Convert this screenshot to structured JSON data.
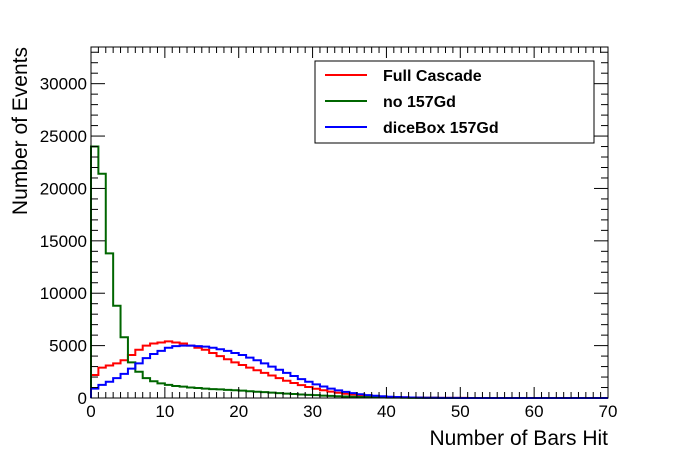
{
  "chart_data": {
    "type": "line",
    "title": "",
    "xlabel": "Number of Bars Hit",
    "ylabel": "Number of Events",
    "xlim": [
      0,
      70
    ],
    "ylim": [
      0,
      33500
    ],
    "x_ticks": [
      0,
      10,
      20,
      30,
      40,
      50,
      60,
      70
    ],
    "y_ticks": [
      0,
      5000,
      10000,
      15000,
      20000,
      25000,
      30000
    ],
    "grid": false,
    "legend_position": "top-right",
    "bin_width": 1,
    "series": [
      {
        "name": "Full Cascade",
        "color": "#ff0000",
        "values": [
          2200,
          2900,
          3100,
          3300,
          3600,
          4100,
          4600,
          5000,
          5200,
          5300,
          5400,
          5300,
          5200,
          5000,
          4800,
          4600,
          4300,
          4000,
          3700,
          3400,
          3150,
          2900,
          2650,
          2400,
          2150,
          1900,
          1650,
          1430,
          1230,
          1050,
          880,
          740,
          610,
          500,
          410,
          330,
          265,
          210,
          165,
          130,
          100,
          78,
          60,
          46,
          35,
          27,
          20,
          15,
          11,
          8,
          6,
          4,
          3,
          2,
          1,
          1,
          1,
          0,
          0,
          0,
          0,
          0,
          0,
          0,
          0,
          0,
          0,
          0,
          0,
          0
        ]
      },
      {
        "name": "no 157Gd",
        "color": "#006600",
        "values": [
          24000,
          21400,
          13800,
          8800,
          5800,
          3400,
          2500,
          1900,
          1600,
          1400,
          1250,
          1150,
          1080,
          1000,
          950,
          900,
          850,
          820,
          780,
          740,
          700,
          650,
          600,
          560,
          510,
          470,
          420,
          380,
          340,
          300,
          270,
          230,
          200,
          170,
          145,
          120,
          100,
          82,
          66,
          52,
          40,
          30,
          22,
          16,
          12,
          8,
          6,
          4,
          3,
          2,
          1,
          1,
          0,
          0,
          0,
          0,
          0,
          0,
          0,
          0,
          0,
          0,
          0,
          0,
          0,
          0,
          0,
          0,
          0,
          0
        ]
      },
      {
        "name": "diceBox 157Gd",
        "color": "#0000ff",
        "values": [
          900,
          1250,
          1550,
          1900,
          2300,
          2800,
          3300,
          3800,
          4200,
          4500,
          4800,
          4950,
          5000,
          5000,
          4950,
          4900,
          4800,
          4650,
          4500,
          4300,
          4100,
          3850,
          3600,
          3300,
          3000,
          2700,
          2400,
          2100,
          1800,
          1550,
          1300,
          1100,
          900,
          730,
          580,
          460,
          360,
          280,
          215,
          165,
          125,
          94,
          70,
          52,
          38,
          28,
          20,
          14,
          10,
          7,
          5,
          3,
          2,
          1,
          1,
          0,
          0,
          0,
          0,
          0,
          0,
          0,
          0,
          0,
          0,
          0,
          0,
          0,
          0,
          0
        ]
      }
    ]
  }
}
